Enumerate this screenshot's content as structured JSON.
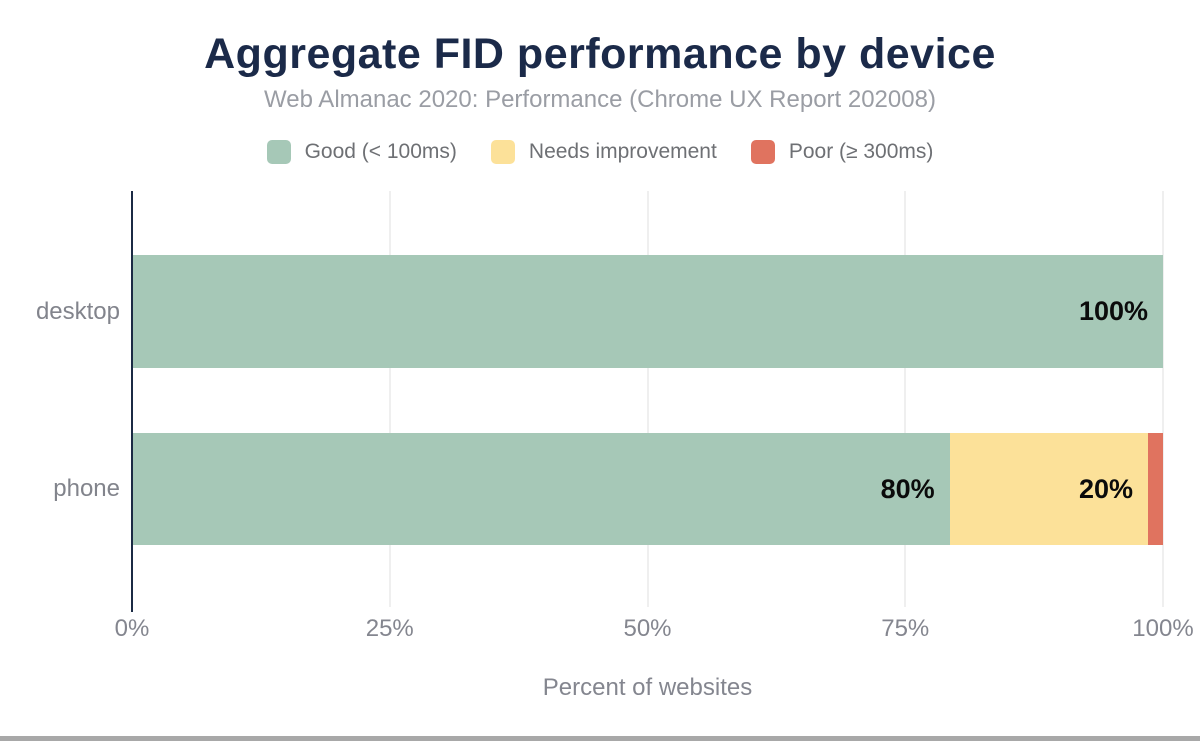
{
  "title": "Aggregate FID performance by device",
  "subtitle": "Web Almanac 2020: Performance (Chrome UX Report 202008)",
  "colors": {
    "title_text": "#1b2a49",
    "subtitle_text": "#9a9da4",
    "axis_line": "#1b2a44",
    "axis_text": "#84868f",
    "good": "#a6c8b7",
    "needs_improvement": "#fce199",
    "poor": "#e0735f"
  },
  "legend": [
    {
      "label": "Good (< 100ms)",
      "color": "#a6c8b7"
    },
    {
      "label": "Needs improvement",
      "color": "#fce199"
    },
    {
      "label": "Poor (≥ 300ms)",
      "color": "#e0735f"
    }
  ],
  "chart_data": {
    "type": "bar",
    "orientation": "horizontal",
    "stacked": true,
    "title": "Aggregate FID performance by device",
    "subtitle": "Web Almanac 2020: Performance (Chrome UX Report 202008)",
    "categories": [
      "desktop",
      "phone"
    ],
    "series": [
      {
        "name": "Good (< 100ms)",
        "color": "#a6c8b7",
        "values": [
          100,
          80
        ]
      },
      {
        "name": "Needs improvement",
        "color": "#fce199",
        "values": [
          0,
          19.4
        ]
      },
      {
        "name": "Poor (≥ 300ms)",
        "color": "#e0735f",
        "values": [
          0,
          0.6
        ]
      }
    ],
    "bar_labels": [
      [
        "100%",
        "",
        ""
      ],
      [
        "80%",
        "20%",
        ""
      ]
    ],
    "xlabel": "Percent of websites",
    "x_ticks": [
      "0%",
      "25%",
      "50%",
      "75%",
      "100%"
    ],
    "xlim": [
      0,
      100
    ],
    "grid": "vertical",
    "legend_position": "top"
  }
}
